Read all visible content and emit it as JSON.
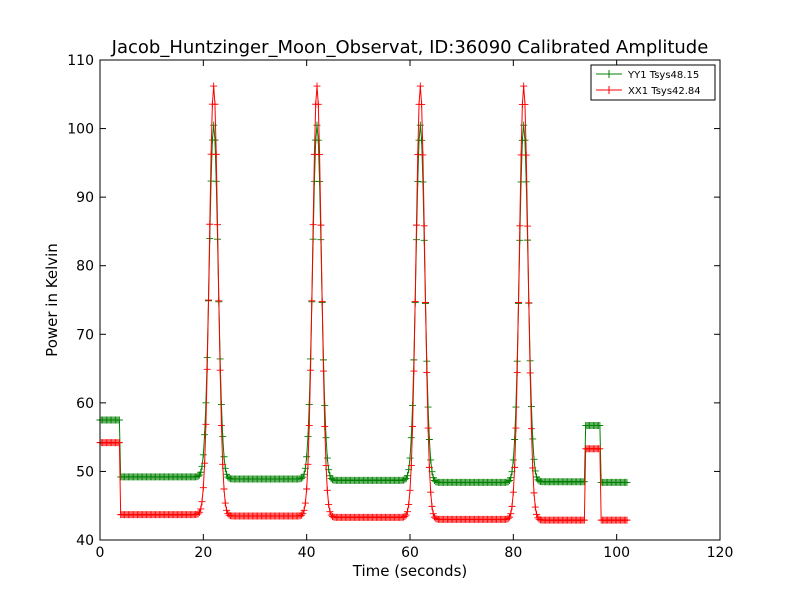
{
  "chart_data": {
    "type": "line",
    "title": "Jacob_Huntzinger_Moon_Observat, ID:36090 Calibrated Amplitude",
    "xlabel": "Time (seconds)",
    "ylabel": "Power in Kelvin",
    "xlim": [
      0,
      120
    ],
    "ylim": [
      40,
      110
    ],
    "xticks": [
      0,
      20,
      40,
      60,
      80,
      100,
      120
    ],
    "yticks": [
      40,
      50,
      60,
      70,
      80,
      90,
      100,
      110
    ],
    "grid": false,
    "legend_position": "top-right",
    "marker": "plus",
    "peaks": [
      22,
      42,
      62,
      82
    ],
    "series": [
      {
        "name": "YY1 Tsys48.15",
        "color": "#008000",
        "peak_value": 100.5,
        "segments": [
          {
            "from": 0,
            "to": 4,
            "level": 57.5
          },
          {
            "from": 4,
            "to": 20,
            "level": 49.2
          },
          {
            "from": 24,
            "to": 40,
            "level": 48.9
          },
          {
            "from": 44,
            "to": 60,
            "level": 48.7
          },
          {
            "from": 64,
            "to": 80,
            "level": 48.4
          },
          {
            "from": 84,
            "to": 94,
            "level": 48.5
          },
          {
            "from": 94,
            "to": 97,
            "level": 56.7
          },
          {
            "from": 97,
            "to": 102,
            "level": 48.4
          }
        ]
      },
      {
        "name": "XX1 Tsys42.84",
        "color": "#ff0000",
        "peak_value": 106.2,
        "segments": [
          {
            "from": 0,
            "to": 4,
            "level": 54.2
          },
          {
            "from": 4,
            "to": 20,
            "level": 43.7
          },
          {
            "from": 24,
            "to": 40,
            "level": 43.5
          },
          {
            "from": 44,
            "to": 60,
            "level": 43.3
          },
          {
            "from": 64,
            "to": 80,
            "level": 43.0
          },
          {
            "from": 84,
            "to": 94,
            "level": 42.9
          },
          {
            "from": 94,
            "to": 97,
            "level": 53.3
          },
          {
            "from": 97,
            "to": 102,
            "level": 42.9
          }
        ]
      }
    ]
  }
}
